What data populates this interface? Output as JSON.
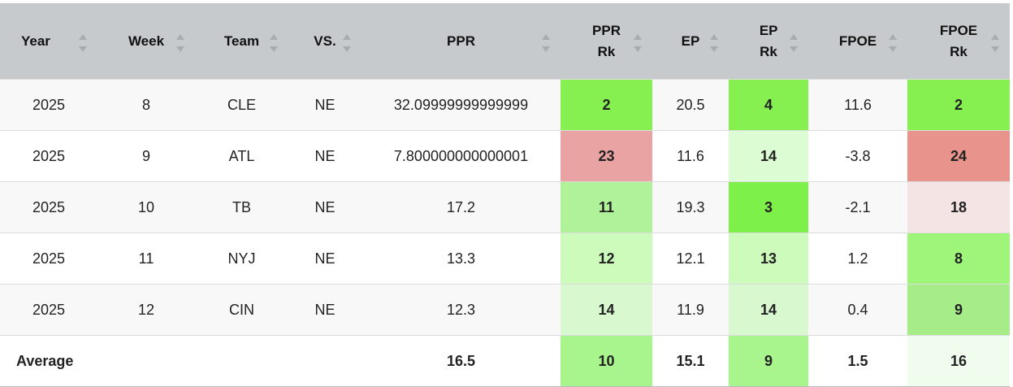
{
  "table": {
    "headers": [
      "Year",
      "Week",
      "Team",
      "VS.",
      "PPR",
      "PPR Rk",
      "EP",
      "EP Rk",
      "FPOE",
      "FPOE Rk"
    ],
    "rows": [
      [
        "2025",
        "8",
        "CLE",
        "NE",
        "32.09999999999999",
        "2",
        "20.5",
        "4",
        "11.6",
        "2"
      ],
      [
        "2025",
        "9",
        "ATL",
        "NE",
        "7.800000000000001",
        "23",
        "11.6",
        "14",
        "-3.8",
        "24"
      ],
      [
        "2025",
        "10",
        "TB",
        "NE",
        "17.2",
        "11",
        "19.3",
        "3",
        "-2.1",
        "18"
      ],
      [
        "2025",
        "11",
        "NYJ",
        "NE",
        "13.3",
        "12",
        "12.1",
        "13",
        "1.2",
        "8"
      ],
      [
        "2025",
        "12",
        "CIN",
        "NE",
        "12.3",
        "14",
        "11.9",
        "14",
        "0.4",
        "9"
      ]
    ],
    "average": {
      "label": "Average",
      "ppr": "16.5",
      "ppr_rk": "10",
      "ep": "15.1",
      "ep_rk": "9",
      "fpoe": "1.5",
      "fpoe_rk": "16"
    }
  }
}
